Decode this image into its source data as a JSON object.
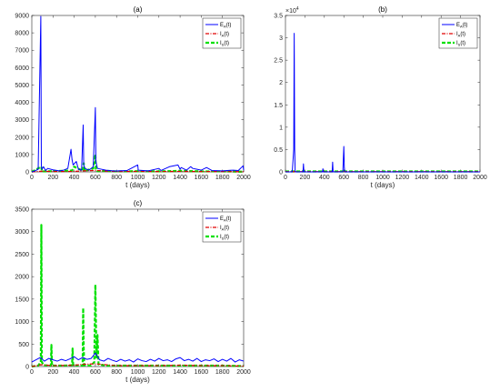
{
  "chart_data": [
    {
      "type": "line",
      "title": "(a)",
      "xlabel": "t (days)",
      "ylabel": "",
      "xlim": [
        0,
        2000
      ],
      "ylim": [
        0,
        9000
      ],
      "xticks": [
        0,
        200,
        400,
        600,
        800,
        1000,
        1200,
        1400,
        1600,
        1800,
        2000
      ],
      "yticks": [
        0,
        1000,
        2000,
        3000,
        4000,
        5000,
        6000,
        7000,
        8000,
        9000
      ],
      "exponent_label": "",
      "grid": false,
      "legend_position": "top-right",
      "series": [
        {
          "name": "E",
          "subscript": "A",
          "name_suffix": "(t)",
          "color": "#0000ff",
          "style": "solid",
          "x": [
            0,
            30,
            60,
            85,
            90,
            95,
            110,
            130,
            150,
            200,
            260,
            300,
            340,
            370,
            380,
            390,
            420,
            440,
            470,
            485,
            490,
            500,
            540,
            580,
            600,
            605,
            620,
            700,
            780,
            900,
            1000,
            1005,
            1100,
            1200,
            1220,
            1300,
            1380,
            1400,
            1410,
            1460,
            1500,
            1520,
            1560,
            1600,
            1650,
            1700,
            1800,
            1900,
            1950,
            1995,
            2000
          ],
          "y": [
            0,
            60,
            150,
            8950,
            350,
            150,
            300,
            80,
            200,
            120,
            60,
            100,
            200,
            1300,
            700,
            400,
            600,
            150,
            100,
            2700,
            400,
            200,
            100,
            300,
            3700,
            600,
            200,
            100,
            50,
            80,
            400,
            100,
            60,
            200,
            80,
            300,
            400,
            150,
            250,
            100,
            300,
            200,
            150,
            100,
            250,
            80,
            60,
            100,
            80,
            350,
            100
          ]
        },
        {
          "name": "I",
          "subscript": "A",
          "name_suffix": "(t)",
          "color": "#e00000",
          "style": "dash-dot",
          "x": [
            0,
            90,
            200,
            400,
            490,
            600,
            800,
            1000,
            1200,
            1400,
            1600,
            1800,
            2000
          ],
          "y": [
            0,
            40,
            20,
            30,
            60,
            80,
            20,
            30,
            20,
            30,
            20,
            20,
            10
          ]
        },
        {
          "name": "I",
          "subscript": "S",
          "name_suffix": "(t)",
          "color": "#00e000",
          "style": "dashed",
          "x": [
            0,
            90,
            95,
            200,
            380,
            400,
            480,
            490,
            500,
            580,
            600,
            605,
            620,
            700,
            800,
            1000,
            1200,
            1400,
            1600,
            1800,
            2000
          ],
          "y": [
            0,
            300,
            30,
            40,
            80,
            300,
            60,
            500,
            60,
            200,
            1000,
            100,
            40,
            60,
            30,
            40,
            30,
            60,
            30,
            30,
            10
          ]
        }
      ]
    },
    {
      "type": "line",
      "title": "(b)",
      "xlabel": "t (days)",
      "ylabel": "",
      "xlim": [
        0,
        2000
      ],
      "ylim": [
        0,
        3.5
      ],
      "xticks": [
        0,
        200,
        400,
        600,
        800,
        1000,
        1200,
        1400,
        1600,
        1800,
        2000
      ],
      "yticks": [
        0,
        0.5,
        1,
        1.5,
        2,
        2.5,
        3,
        3.5
      ],
      "exponent_label": "×10",
      "exponent_power": "4",
      "grid": false,
      "legend_position": "top-right",
      "series": [
        {
          "name": "E",
          "subscript": "A",
          "name_suffix": "(t)",
          "color": "#0000ff",
          "style": "solid",
          "x": [
            0,
            70,
            85,
            90,
            95,
            100,
            180,
            185,
            190,
            300,
            380,
            385,
            390,
            480,
            485,
            490,
            590,
            600,
            605,
            610,
            700,
            1000,
            1400,
            2000
          ],
          "y": [
            0,
            0,
            0.5,
            3.1,
            0.5,
            0,
            0,
            0.18,
            0,
            0,
            0,
            0.07,
            0,
            0,
            0.22,
            0,
            0,
            0.57,
            0.1,
            0,
            0,
            0,
            0,
            0
          ]
        },
        {
          "name": "I",
          "subscript": "A",
          "name_suffix": "(t)",
          "color": "#e00000",
          "style": "dash-dot",
          "x": [
            0,
            2000
          ],
          "y": [
            0.005,
            0.005
          ]
        },
        {
          "name": "I",
          "subscript": "S",
          "name_suffix": "(t)",
          "color": "#00e000",
          "style": "dashed",
          "x": [
            0,
            600,
            605,
            610,
            2000
          ],
          "y": [
            0.01,
            0.01,
            0.04,
            0.01,
            0.01
          ]
        }
      ]
    },
    {
      "type": "line",
      "title": "(c)",
      "xlabel": "t (days)",
      "ylabel": "",
      "xlim": [
        0,
        2000
      ],
      "ylim": [
        0,
        3500
      ],
      "xticks": [
        0,
        200,
        400,
        600,
        800,
        1000,
        1200,
        1400,
        1600,
        1800,
        2000
      ],
      "yticks": [
        0,
        500,
        1000,
        1500,
        2000,
        2500,
        3000,
        3500
      ],
      "exponent_label": "",
      "grid": false,
      "legend_position": "top-right",
      "series": [
        {
          "name": "E",
          "subscript": "A",
          "name_suffix": "(t)",
          "color": "#0000ff",
          "style": "solid",
          "x": [
            0,
            40,
            80,
            120,
            160,
            200,
            240,
            280,
            320,
            360,
            400,
            440,
            480,
            520,
            560,
            600,
            640,
            680,
            720,
            760,
            800,
            840,
            880,
            920,
            960,
            1000,
            1040,
            1080,
            1120,
            1160,
            1200,
            1240,
            1280,
            1320,
            1360,
            1400,
            1440,
            1480,
            1520,
            1560,
            1600,
            1640,
            1680,
            1720,
            1760,
            1800,
            1840,
            1880,
            1920,
            1960,
            2000
          ],
          "y": [
            100,
            150,
            200,
            120,
            180,
            150,
            120,
            160,
            130,
            170,
            220,
            150,
            200,
            160,
            180,
            300,
            150,
            120,
            180,
            140,
            110,
            160,
            120,
            150,
            100,
            170,
            130,
            110,
            160,
            120,
            180,
            130,
            150,
            110,
            170,
            200,
            130,
            160,
            120,
            180,
            110,
            150,
            130,
            170,
            110,
            160,
            120,
            180,
            100,
            150,
            120
          ]
        },
        {
          "name": "I",
          "subscript": "A",
          "name_suffix": "(t)",
          "color": "#e00000",
          "style": "dash-dot",
          "x": [
            0,
            90,
            200,
            400,
            490,
            600,
            800,
            1000,
            1200,
            1400,
            1600,
            1800,
            2000
          ],
          "y": [
            0,
            40,
            20,
            30,
            50,
            60,
            20,
            20,
            20,
            30,
            20,
            20,
            10
          ]
        },
        {
          "name": "I",
          "subscript": "S",
          "name_suffix": "(t)",
          "color": "#00e000",
          "style": "dashed",
          "x": [
            0,
            60,
            85,
            90,
            95,
            110,
            180,
            185,
            190,
            300,
            380,
            385,
            390,
            480,
            485,
            490,
            495,
            560,
            590,
            600,
            610,
            620,
            630,
            700,
            800,
            1000,
            1200,
            1400,
            1600,
            1800,
            2000
          ],
          "y": [
            0,
            20,
            100,
            3150,
            100,
            30,
            20,
            480,
            20,
            20,
            30,
            400,
            30,
            20,
            1300,
            400,
            30,
            20,
            100,
            1820,
            200,
            700,
            50,
            20,
            20,
            20,
            20,
            20,
            20,
            20,
            10
          ]
        }
      ]
    }
  ]
}
